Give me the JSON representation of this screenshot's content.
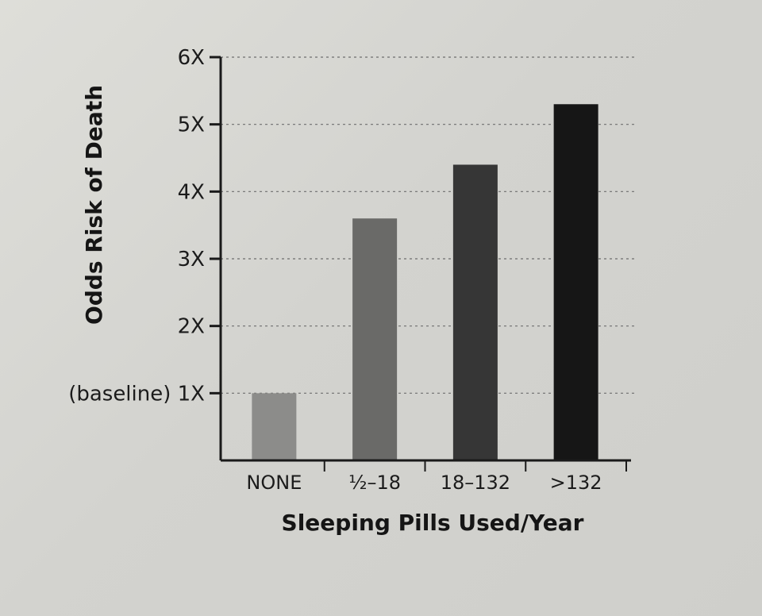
{
  "chart_data": {
    "type": "bar",
    "title": "",
    "xlabel": "Sleeping Pills Used/Year",
    "ylabel": "Odds Risk of Death",
    "categories": [
      "NONE",
      "½–18",
      "18–132",
      ">132"
    ],
    "values": [
      1.0,
      3.6,
      4.4,
      5.3
    ],
    "bar_colors": [
      "#8c8c8a",
      "#6a6a68",
      "#363636",
      "#161616"
    ],
    "ylim": [
      0,
      6
    ],
    "yticks": [
      {
        "value": 1,
        "label": "1X",
        "prefix": "(baseline)"
      },
      {
        "value": 2,
        "label": "2X"
      },
      {
        "value": 3,
        "label": "3X"
      },
      {
        "value": 4,
        "label": "4X"
      },
      {
        "value": 5,
        "label": "5X"
      },
      {
        "value": 6,
        "label": "6X"
      }
    ],
    "grid": "horizontal dotted",
    "legend": "none"
  }
}
